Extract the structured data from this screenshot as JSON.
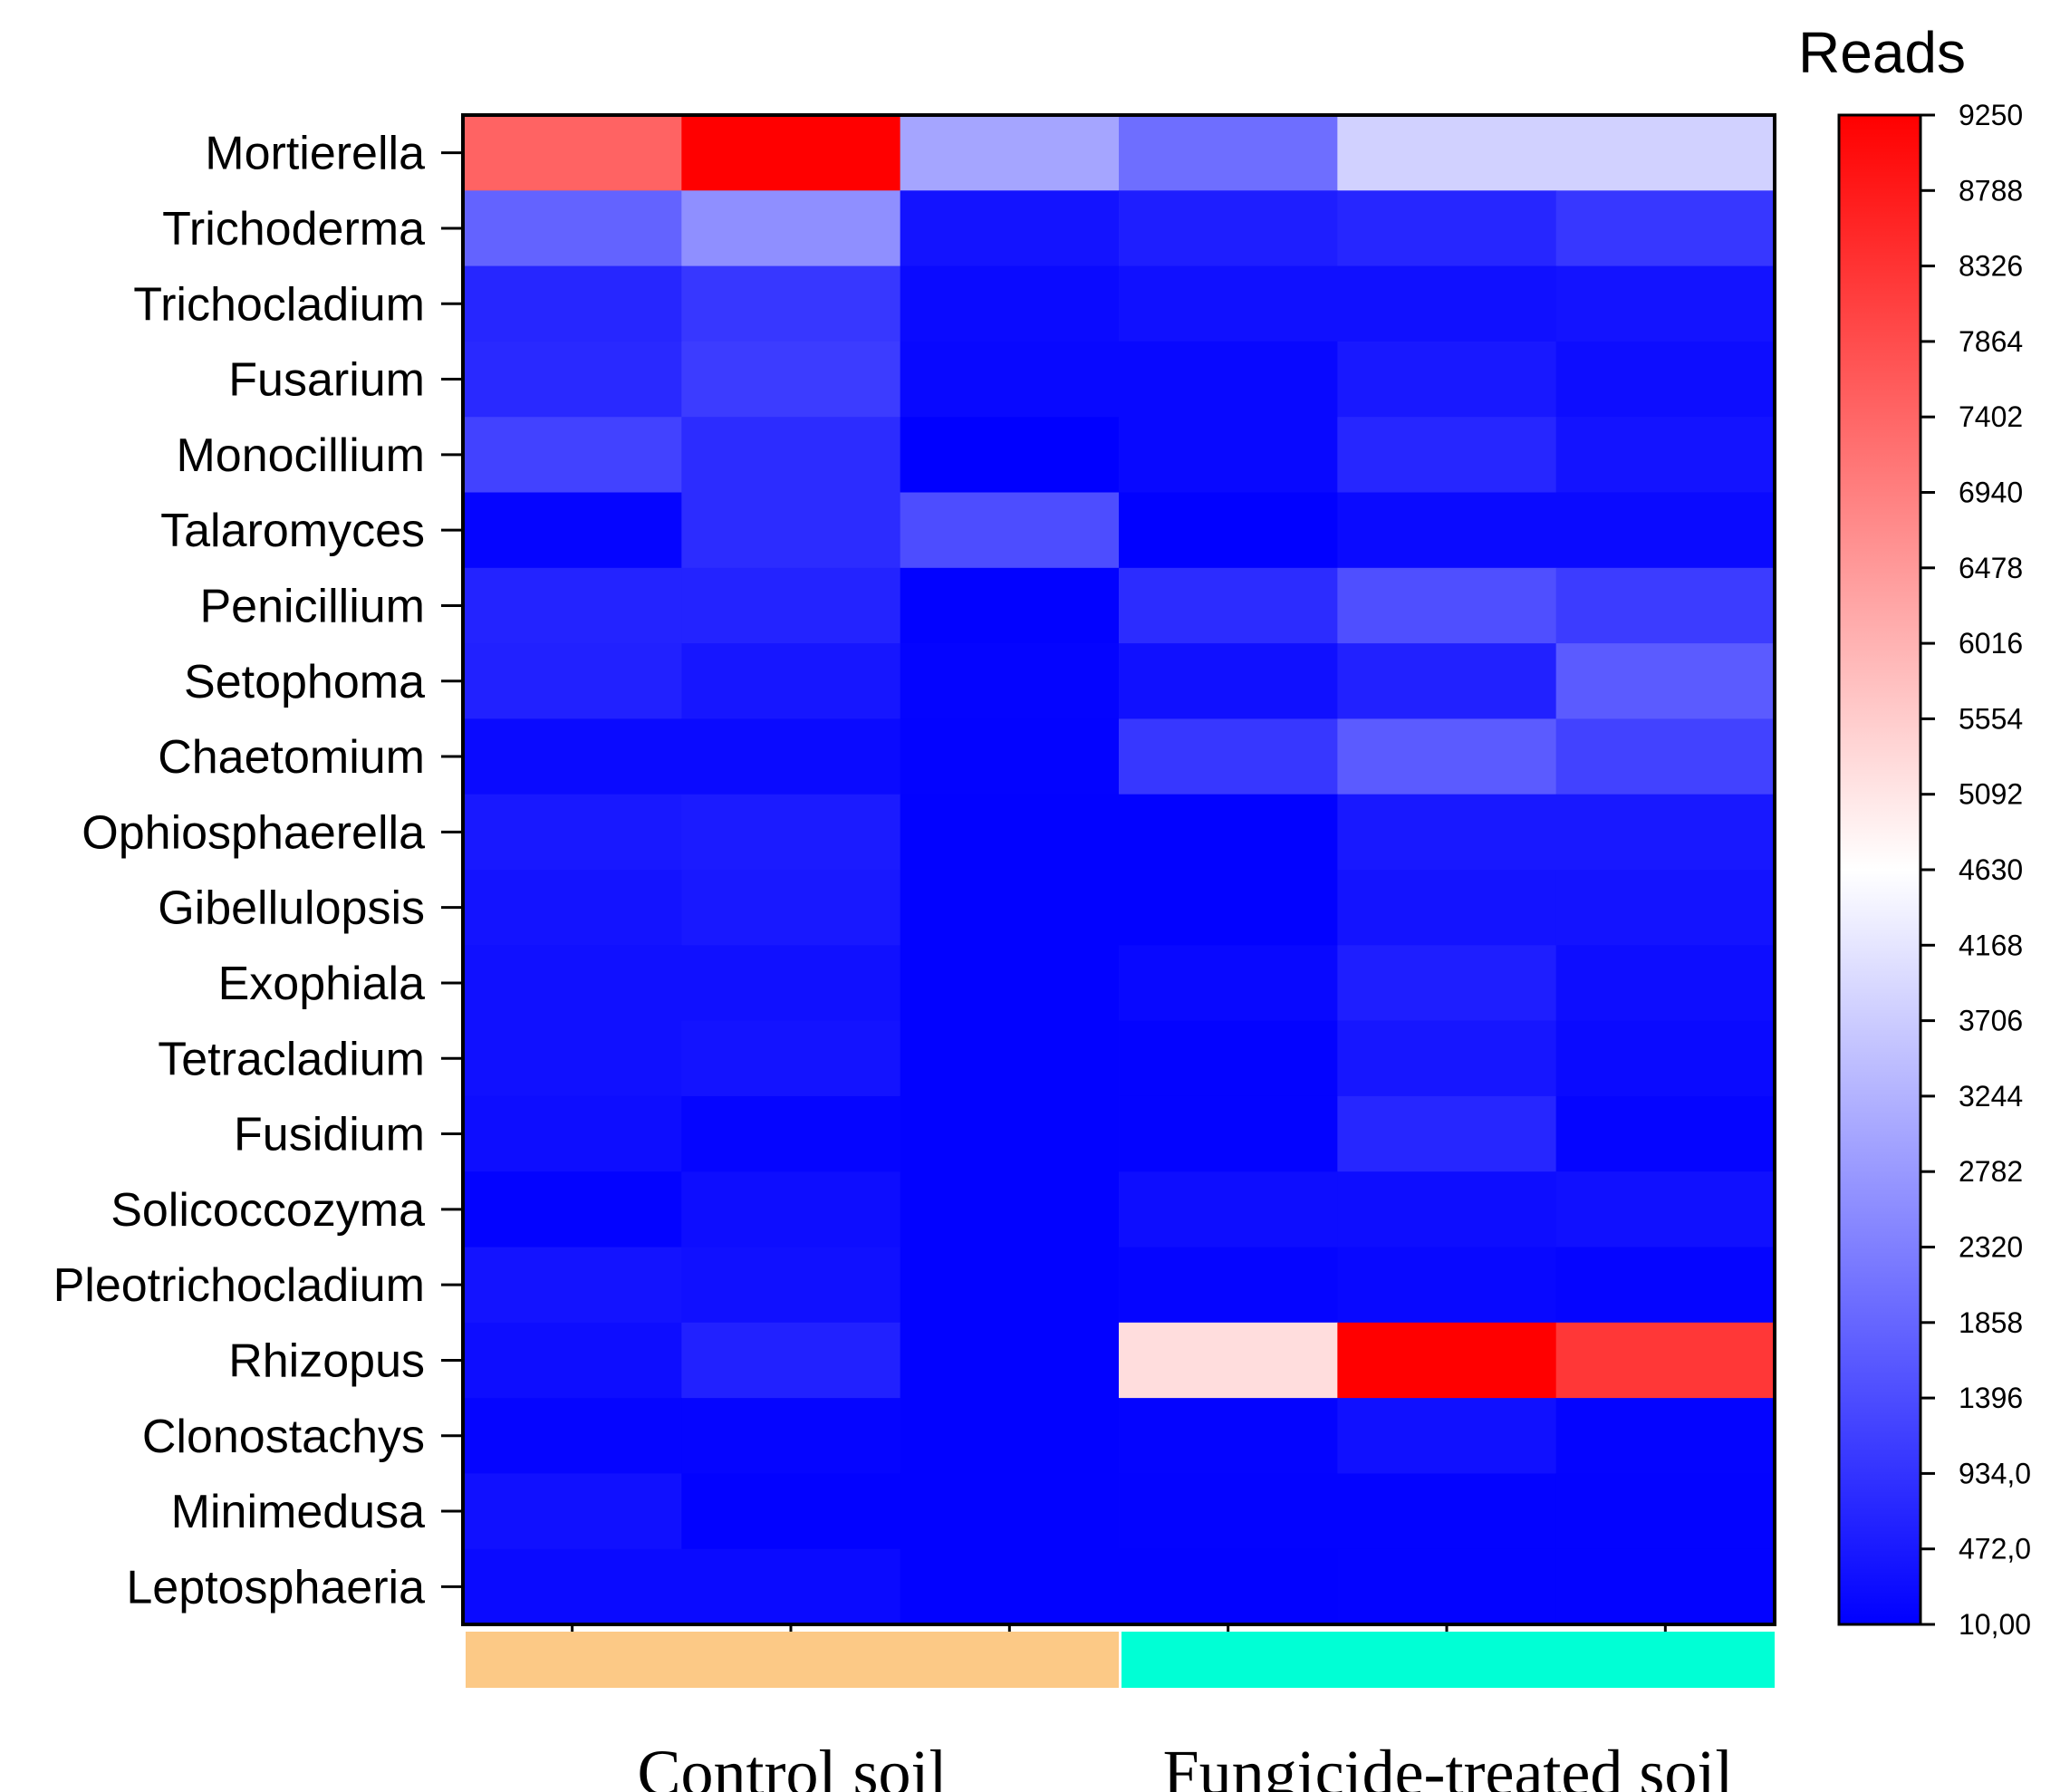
{
  "chart_data": {
    "type": "heatmap",
    "colorbar": {
      "title": "Reads",
      "min": 10,
      "max": 9250,
      "tick_labels": [
        "9250",
        "8788",
        "8326",
        "7864",
        "7402",
        "6940",
        "6478",
        "6016",
        "5554",
        "5092",
        "4630",
        "4168",
        "3706",
        "3244",
        "2782",
        "2320",
        "1858",
        "1396",
        "934,0",
        "472,0",
        "10,00"
      ],
      "color_low": "#0000ff",
      "color_mid": "#ffffff",
      "color_high": "#ff0000"
    },
    "rows": [
      "Mortierella",
      "Trichoderma",
      "Trichocladium",
      "Fusarium",
      "Monocillium",
      "Talaromyces",
      "Penicillium",
      "Setophoma",
      "Chaetomium",
      "Ophiosphaerella",
      "Gibellulopsis",
      "Exophiala",
      "Tetracladium",
      "Fusidium",
      "Solicoccozyma",
      "Pleotrichocladium",
      "Rhizopus",
      "Clonostachys",
      "Minimedusa",
      "Leptosphaeria"
    ],
    "columns": 6,
    "groups": [
      {
        "label": "Control soil",
        "color": "#fcc986",
        "columns": [
          0,
          1,
          2
        ]
      },
      {
        "label": "Fungicide-treated soil",
        "color": "#00ffd5",
        "columns": [
          3,
          4,
          5
        ]
      }
    ],
    "values": [
      [
        7450,
        9250,
        3000,
        2000,
        3800,
        3800
      ],
      [
        1800,
        2600,
        350,
        550,
        700,
        1000
      ],
      [
        700,
        1000,
        200,
        300,
        300,
        350
      ],
      [
        750,
        1100,
        150,
        150,
        450,
        250
      ],
      [
        1200,
        800,
        10,
        150,
        700,
        350
      ],
      [
        100,
        800,
        1400,
        30,
        200,
        200
      ],
      [
        650,
        650,
        50,
        800,
        1450,
        1100
      ],
      [
        600,
        400,
        80,
        300,
        600,
        1650
      ],
      [
        200,
        200,
        60,
        1000,
        1650,
        1200
      ],
      [
        450,
        500,
        40,
        50,
        450,
        450
      ],
      [
        350,
        450,
        40,
        50,
        350,
        350
      ],
      [
        300,
        300,
        40,
        150,
        550,
        250
      ],
      [
        300,
        350,
        40,
        60,
        400,
        200
      ],
      [
        250,
        100,
        40,
        60,
        700,
        100
      ],
      [
        60,
        250,
        40,
        250,
        250,
        300
      ],
      [
        350,
        300,
        40,
        100,
        150,
        100
      ],
      [
        250,
        600,
        50,
        5250,
        9250,
        8250
      ],
      [
        100,
        100,
        40,
        80,
        300,
        80
      ],
      [
        300,
        50,
        40,
        60,
        60,
        60
      ],
      [
        200,
        200,
        40,
        40,
        60,
        60
      ]
    ],
    "xlabel": "",
    "ylabel": ""
  }
}
